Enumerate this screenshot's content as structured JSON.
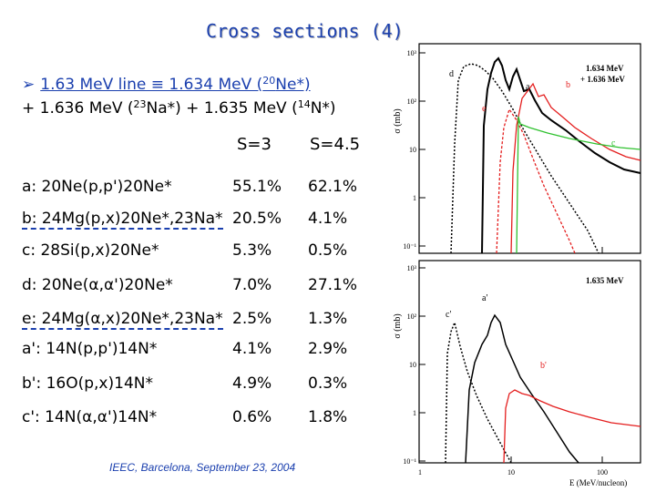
{
  "title": "Cross sections (4)",
  "intro": {
    "line1_part1": "1.63 MeV line ≡ 1.634 MeV (",
    "line1_sup": "20",
    "line1_part2": "Ne*)",
    "line2_a": "+ 1.636 MeV (",
    "line2_sup1": "23",
    "line2_b": "Na*) + 1.635 MeV (",
    "line2_sup2": "14",
    "line2_c": "N*)"
  },
  "headers": {
    "s3": "S=3",
    "s45": "S=4.5"
  },
  "rows": [
    {
      "label": "a: 20Ne(p,p')20Ne*",
      "s3": "55.1%",
      "s45": "62.1%"
    },
    {
      "label": "b: 24Mg(p,x)20Ne*,23Na*",
      "s3": "20.5%",
      "s45": "4.1%"
    },
    {
      "label": "c: 28Si(p,x)20Ne*",
      "s3": "5.3%",
      "s45": "0.5%"
    },
    {
      "label": "d: 20Ne(α,α')20Ne*",
      "s3": "7.0%",
      "s45": "27.1%"
    },
    {
      "label": "e: 24Mg(α,x)20Ne*,23Na*",
      "s3": "2.5%",
      "s45": "1.3%"
    },
    {
      "label": "a': 14N(p,p')14N*",
      "s3": "4.1%",
      "s45": "2.9%"
    },
    {
      "label": "b': 16O(p,x)14N*",
      "s3": "4.9%",
      "s45": "0.3%"
    },
    {
      "label": "c': 14N(α,α')14N*",
      "s3": "0.6%",
      "s45": "1.8%"
    }
  ],
  "footer": "IEEC, Barcelona, September 23, 2004",
  "plots": {
    "ylabel": "σ (mb)",
    "xlabel": "E (MeV/nucleon)",
    "top_legend_1": "1.634 MeV",
    "top_legend_2": "+ 1.636 MeV",
    "bottom_legend": "1.635 MeV",
    "xticks": [
      "1",
      "10",
      "100"
    ],
    "top_yticks": [
      "10³",
      "10²",
      "10",
      "1",
      "10⁻¹"
    ],
    "bottom_yticks": [
      "10³",
      "10²",
      "10",
      "1",
      "10⁻¹"
    ],
    "top_curve_labels": [
      "a",
      "b",
      "c",
      "d",
      "e"
    ],
    "bottom_curve_labels": [
      "a'",
      "b'",
      "c'"
    ]
  }
}
